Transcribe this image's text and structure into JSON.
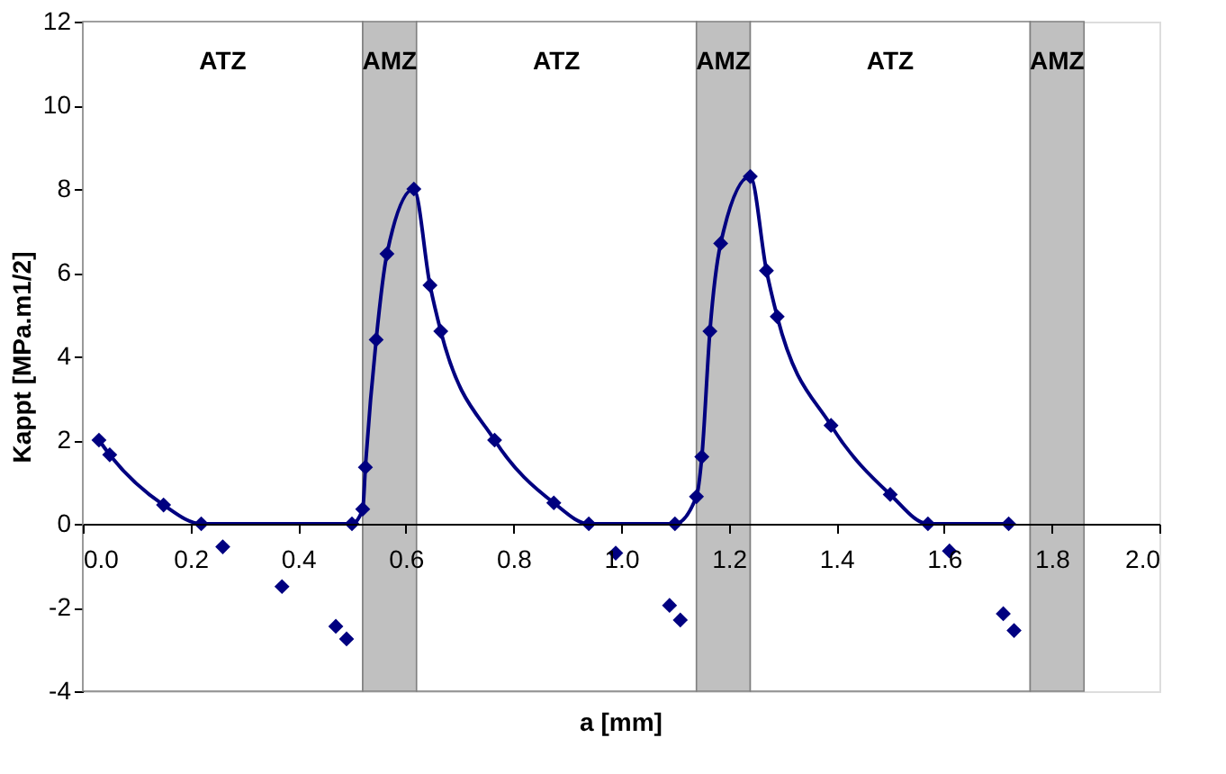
{
  "chart_data": {
    "type": "line",
    "xlabel": "a [mm]",
    "ylabel": "Kappt [MPa.m1/2]",
    "xlim": [
      0,
      2.0
    ],
    "ylim": [
      -4,
      12
    ],
    "xticks": [
      {
        "value": 0,
        "label": "0.0"
      },
      0.2,
      0.4,
      0.6,
      0.8,
      {
        "value": 1,
        "label": "1.0"
      },
      1.2,
      1.4,
      1.6,
      1.8,
      {
        "value": 2,
        "label": "2.0"
      }
    ],
    "yticks": [
      -4,
      -2,
      0,
      2,
      4,
      6,
      8,
      10,
      12
    ],
    "grid": false,
    "marker": "diamond",
    "line_style": "solid",
    "series": [
      {
        "color": "#000080",
        "x": [
          0.03,
          0.05,
          0.15,
          0.22,
          0.5,
          0.52,
          0.525,
          0.545,
          0.565,
          0.615,
          0.645,
          0.665,
          0.765,
          0.875,
          0.94,
          1.1,
          1.14,
          1.15,
          1.165,
          1.185,
          1.24,
          1.27,
          1.29,
          1.39,
          1.5,
          1.57,
          1.72
        ],
        "values": [
          2.0,
          1.65,
          0.45,
          0,
          0,
          0.35,
          1.35,
          4.4,
          6.45,
          8.0,
          5.7,
          4.6,
          2.0,
          0.5,
          0,
          0,
          0.65,
          1.6,
          4.6,
          6.7,
          8.3,
          6.05,
          4.95,
          2.35,
          0.7,
          0,
          0
        ]
      },
      {
        "type": "scatter",
        "color": "#000080",
        "x": [
          0.26,
          0.37,
          0.47,
          0.49,
          0.99,
          1.09,
          1.11,
          1.61,
          1.71,
          1.73
        ],
        "values": [
          -0.55,
          -1.5,
          -2.45,
          -2.75,
          -0.7,
          -1.95,
          -2.3,
          -0.65,
          -2.15,
          -2.55
        ]
      }
    ],
    "bands": [
      {
        "axis": "x",
        "from": 0,
        "to": 0.52,
        "label": "ATZ",
        "color": "#ffffff"
      },
      {
        "axis": "x",
        "from": 0.52,
        "to": 0.62,
        "label": "AMZ",
        "color": "#c0c0c0"
      },
      {
        "axis": "x",
        "from": 0.62,
        "to": 1.14,
        "label": "ATZ",
        "color": "#ffffff"
      },
      {
        "axis": "x",
        "from": 1.14,
        "to": 1.24,
        "label": "AMZ",
        "color": "#c0c0c0"
      },
      {
        "axis": "x",
        "from": 1.24,
        "to": 1.76,
        "label": "ATZ",
        "color": "#ffffff"
      },
      {
        "axis": "x",
        "from": 1.76,
        "to": 1.86,
        "label": "AMZ",
        "color": "#c0c0c0"
      }
    ]
  }
}
